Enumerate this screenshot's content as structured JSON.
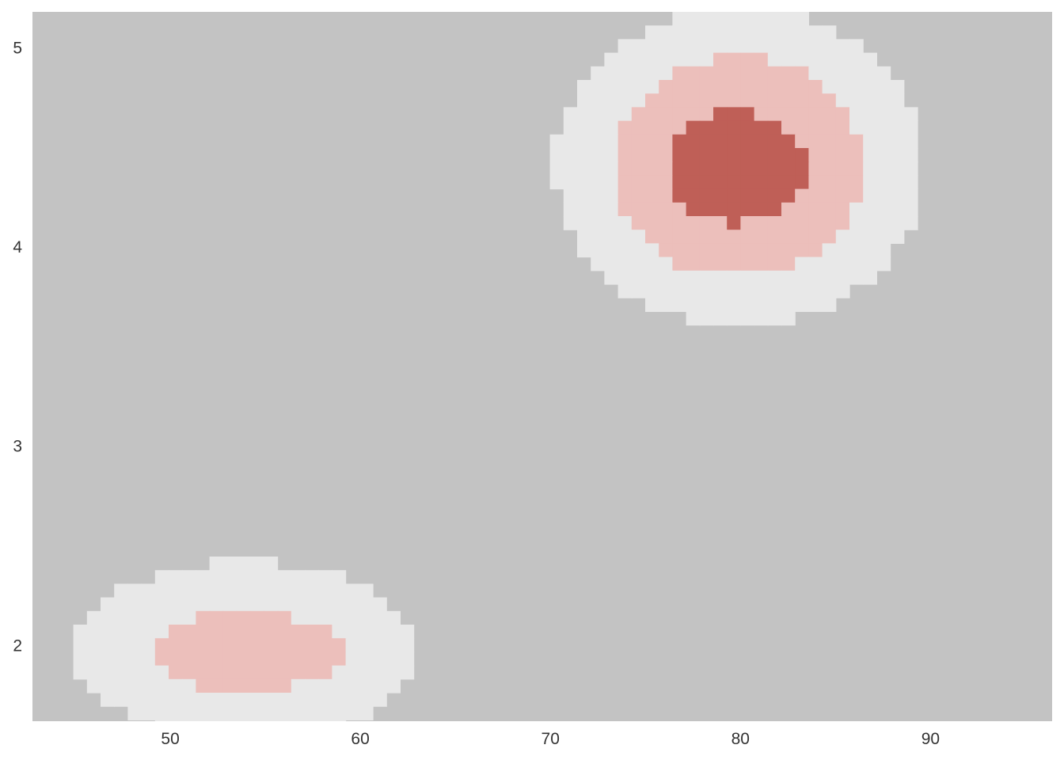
{
  "chart_data": {
    "type": "heatmap",
    "subtype": "density-contour",
    "title": "",
    "xlabel": "",
    "ylabel": "",
    "xlim": [
      42.75,
      96.4
    ],
    "ylim": [
      1.62,
      5.18
    ],
    "xticks": [
      50,
      60,
      70,
      80,
      90
    ],
    "yticks": [
      2,
      3,
      4,
      5
    ],
    "xtick_labels": [
      "50",
      "60",
      "70",
      "80",
      "90"
    ],
    "ytick_labels": [
      "2",
      "3",
      "4",
      "5"
    ],
    "grid": false,
    "background_color": "#c3c3c3",
    "level_colors": [
      "#c3c3c3",
      "#e8e8e8",
      "#ecbfbb",
      "#bf5f57"
    ],
    "clusters": [
      {
        "center_x": 79.9,
        "center_y": 4.4,
        "levels": [
          {
            "level": 1,
            "rx": 9.7,
            "ry": 0.8
          },
          {
            "level": 2,
            "rx": 6.6,
            "ry": 0.55
          },
          {
            "level": 3,
            "rx": 3.7,
            "ry": 0.28
          }
        ]
      },
      {
        "center_x": 54.0,
        "center_y": 1.97,
        "levels": [
          {
            "level": 1,
            "rx": 9.0,
            "ry": 0.45
          },
          {
            "level": 2,
            "rx": 5.0,
            "ry": 0.2
          }
        ]
      }
    ]
  }
}
